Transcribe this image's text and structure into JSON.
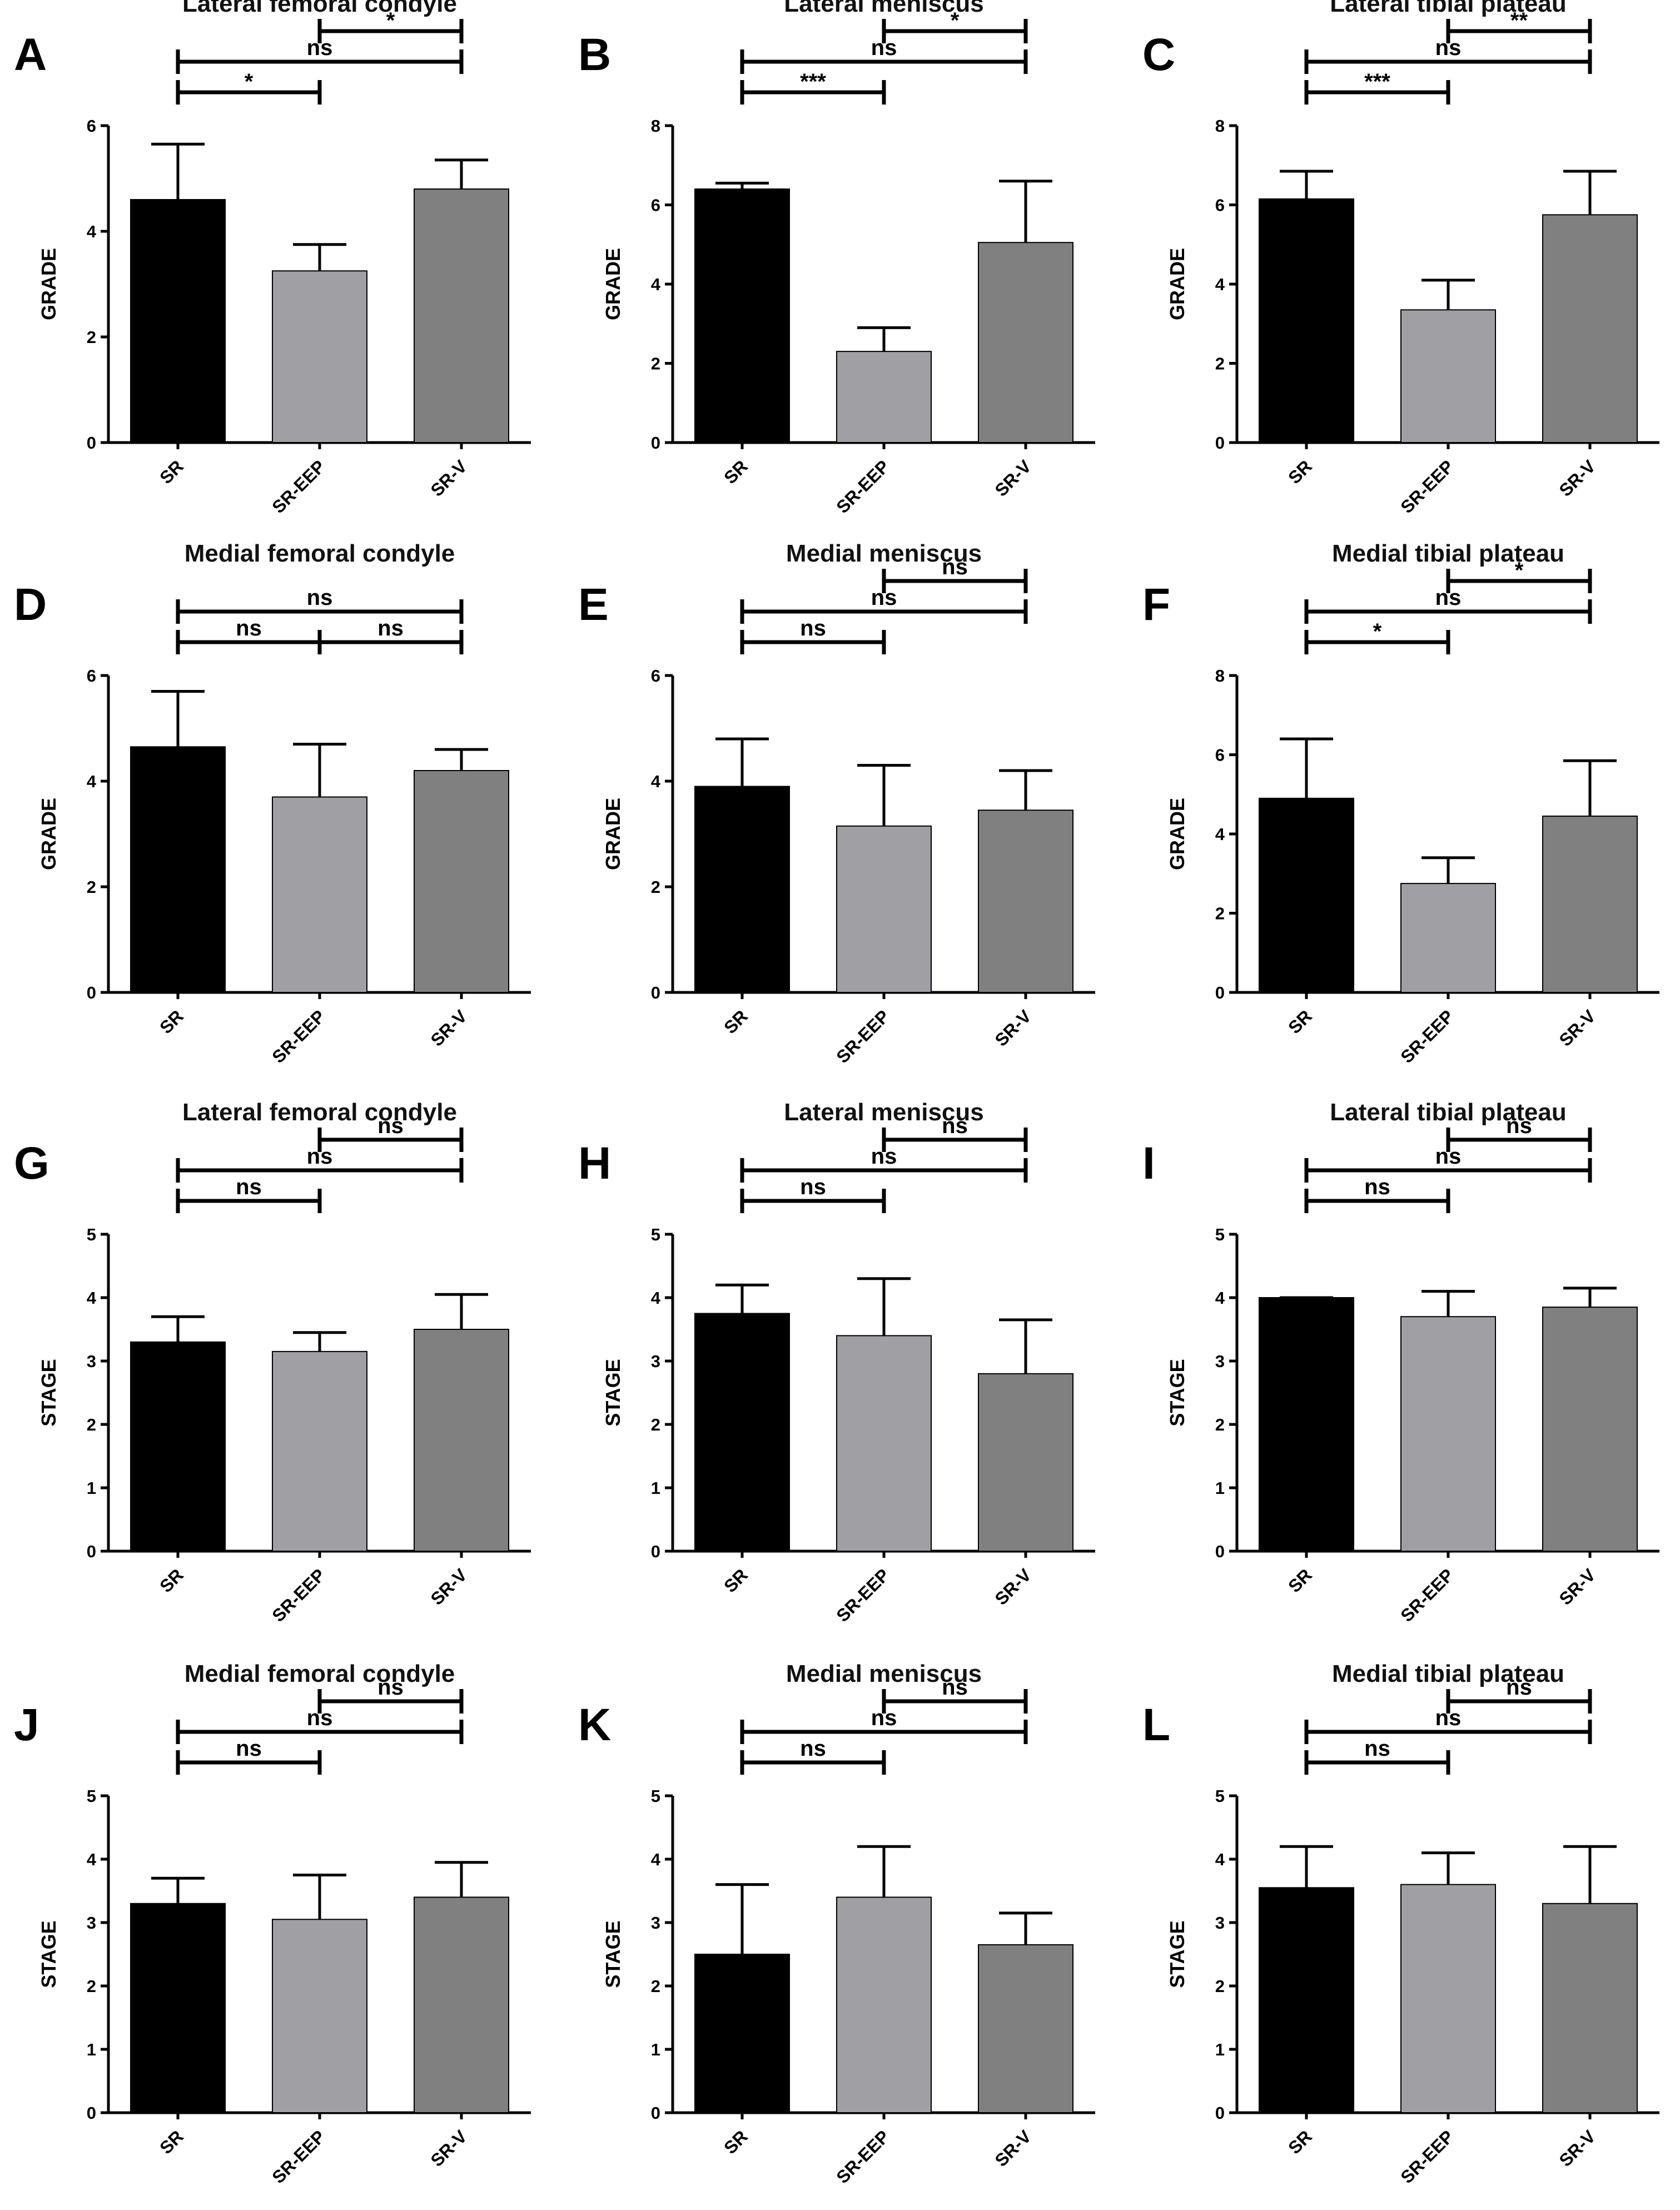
{
  "figure": {
    "colors": {
      "SR": "#000000",
      "SR-EEP": "#a0a0a4",
      "SR-V": "#808080"
    }
  },
  "chart_data": [
    {
      "id": "A",
      "type": "bar",
      "title": "Lateral femoral condyle",
      "ylabel": "GRADE",
      "categories": [
        "SR",
        "SR-EEP",
        "SR-V"
      ],
      "values": [
        4.6,
        3.25,
        4.8
      ],
      "errors": [
        1.05,
        0.5,
        0.55
      ],
      "ylim": [
        0,
        6
      ],
      "yticks": [
        "0",
        "2",
        "4",
        "6"
      ],
      "comparisons": [
        {
          "from": 0,
          "to": 1,
          "label": "*",
          "level": 0
        },
        {
          "from": 0,
          "to": 2,
          "label": "ns",
          "level": 1
        },
        {
          "from": 1,
          "to": 2,
          "label": "*",
          "level": 2
        }
      ]
    },
    {
      "id": "B",
      "type": "bar",
      "title": "Lateral meniscus",
      "ylabel": "GRADE",
      "categories": [
        "SR",
        "SR-EEP",
        "SR-V"
      ],
      "values": [
        6.4,
        2.3,
        5.05
      ],
      "errors": [
        0.15,
        0.6,
        1.55
      ],
      "ylim": [
        0,
        8
      ],
      "yticks": [
        "0",
        "2",
        "4",
        "6",
        "8"
      ],
      "comparisons": [
        {
          "from": 0,
          "to": 1,
          "label": "***",
          "level": 0
        },
        {
          "from": 0,
          "to": 2,
          "label": "ns",
          "level": 1
        },
        {
          "from": 1,
          "to": 2,
          "label": "*",
          "level": 2
        }
      ]
    },
    {
      "id": "C",
      "type": "bar",
      "title": "Lateral tibial plateau",
      "ylabel": "GRADE",
      "categories": [
        "SR",
        "SR-EEP",
        "SR-V"
      ],
      "values": [
        6.15,
        3.35,
        5.75
      ],
      "errors": [
        0.7,
        0.75,
        1.1
      ],
      "ylim": [
        0,
        8
      ],
      "yticks": [
        "0",
        "2",
        "4",
        "6",
        "8"
      ],
      "comparisons": [
        {
          "from": 0,
          "to": 1,
          "label": "***",
          "level": 0
        },
        {
          "from": 0,
          "to": 2,
          "label": "ns",
          "level": 1
        },
        {
          "from": 1,
          "to": 2,
          "label": "**",
          "level": 2
        }
      ]
    },
    {
      "id": "D",
      "type": "bar",
      "title": "Medial femoral condyle",
      "ylabel": "GRADE",
      "categories": [
        "SR",
        "SR-EEP",
        "SR-V"
      ],
      "values": [
        4.65,
        3.7,
        4.2
      ],
      "errors": [
        1.05,
        1.0,
        0.4
      ],
      "ylim": [
        0,
        6
      ],
      "yticks": [
        "0",
        "2",
        "4",
        "6"
      ],
      "comparisons": [
        {
          "from": 0,
          "to": 1,
          "label": "ns",
          "level": 0
        },
        {
          "from": 1,
          "to": 2,
          "label": "ns",
          "level": 0
        },
        {
          "from": 0,
          "to": 2,
          "label": "ns",
          "level": 1
        }
      ]
    },
    {
      "id": "E",
      "type": "bar",
      "title": "Medial meniscus",
      "ylabel": "GRADE",
      "categories": [
        "SR",
        "SR-EEP",
        "SR-V"
      ],
      "values": [
        3.9,
        3.15,
        3.45
      ],
      "errors": [
        0.9,
        1.15,
        0.75
      ],
      "ylim": [
        0,
        6
      ],
      "yticks": [
        "0",
        "2",
        "4",
        "6"
      ],
      "comparisons": [
        {
          "from": 0,
          "to": 1,
          "label": "ns",
          "level": 0
        },
        {
          "from": 0,
          "to": 2,
          "label": "ns",
          "level": 1
        },
        {
          "from": 1,
          "to": 2,
          "label": "ns",
          "level": 2
        }
      ]
    },
    {
      "id": "F",
      "type": "bar",
      "title": "Medial tibial plateau",
      "ylabel": "GRADE",
      "categories": [
        "SR",
        "SR-EEP",
        "SR-V"
      ],
      "values": [
        4.9,
        2.75,
        4.45
      ],
      "errors": [
        1.5,
        0.65,
        1.4
      ],
      "ylim": [
        0,
        8
      ],
      "yticks": [
        "0",
        "2",
        "4",
        "6",
        "8"
      ],
      "comparisons": [
        {
          "from": 0,
          "to": 1,
          "label": "*",
          "level": 0
        },
        {
          "from": 0,
          "to": 2,
          "label": "ns",
          "level": 1
        },
        {
          "from": 1,
          "to": 2,
          "label": "*",
          "level": 2
        }
      ]
    },
    {
      "id": "G",
      "type": "bar",
      "title": "Lateral femoral condyle",
      "ylabel": "STAGE",
      "categories": [
        "SR",
        "SR-EEP",
        "SR-V"
      ],
      "values": [
        3.3,
        3.15,
        3.5
      ],
      "errors": [
        0.4,
        0.3,
        0.55
      ],
      "ylim": [
        0,
        5
      ],
      "yticks": [
        "0",
        "1",
        "2",
        "3",
        "4",
        "5"
      ],
      "comparisons": [
        {
          "from": 0,
          "to": 1,
          "label": "ns",
          "level": 0
        },
        {
          "from": 0,
          "to": 2,
          "label": "ns",
          "level": 1
        },
        {
          "from": 1,
          "to": 2,
          "label": "ns",
          "level": 2
        }
      ]
    },
    {
      "id": "H",
      "type": "bar",
      "title": "Lateral meniscus",
      "ylabel": "STAGE",
      "categories": [
        "SR",
        "SR-EEP",
        "SR-V"
      ],
      "values": [
        3.75,
        3.4,
        2.8
      ],
      "errors": [
        0.45,
        0.9,
        0.85
      ],
      "ylim": [
        0,
        5
      ],
      "yticks": [
        "0",
        "1",
        "2",
        "3",
        "4",
        "5"
      ],
      "comparisons": [
        {
          "from": 0,
          "to": 1,
          "label": "ns",
          "level": 0
        },
        {
          "from": 0,
          "to": 2,
          "label": "ns",
          "level": 1
        },
        {
          "from": 1,
          "to": 2,
          "label": "ns",
          "level": 2
        }
      ]
    },
    {
      "id": "I",
      "type": "bar",
      "title": "Lateral tibial plateau",
      "ylabel": "STAGE",
      "categories": [
        "SR",
        "SR-EEP",
        "SR-V"
      ],
      "values": [
        4.0,
        3.7,
        3.85
      ],
      "errors": [
        0.0,
        0.4,
        0.3
      ],
      "ylim": [
        0,
        5
      ],
      "yticks": [
        "0",
        "1",
        "2",
        "3",
        "4",
        "5"
      ],
      "comparisons": [
        {
          "from": 0,
          "to": 1,
          "label": "ns",
          "level": 0
        },
        {
          "from": 0,
          "to": 2,
          "label": "ns",
          "level": 1
        },
        {
          "from": 1,
          "to": 2,
          "label": "ns",
          "level": 2
        }
      ]
    },
    {
      "id": "J",
      "type": "bar",
      "title": "Medial femoral condyle",
      "ylabel": "STAGE",
      "categories": [
        "SR",
        "SR-EEP",
        "SR-V"
      ],
      "values": [
        3.3,
        3.05,
        3.4
      ],
      "errors": [
        0.4,
        0.7,
        0.55
      ],
      "ylim": [
        0,
        5
      ],
      "yticks": [
        "0",
        "1",
        "2",
        "3",
        "4",
        "5"
      ],
      "comparisons": [
        {
          "from": 0,
          "to": 1,
          "label": "ns",
          "level": 0
        },
        {
          "from": 0,
          "to": 2,
          "label": "ns",
          "level": 1
        },
        {
          "from": 1,
          "to": 2,
          "label": "ns",
          "level": 2
        }
      ]
    },
    {
      "id": "K",
      "type": "bar",
      "title": "Medial meniscus",
      "ylabel": "STAGE",
      "categories": [
        "SR",
        "SR-EEP",
        "SR-V"
      ],
      "values": [
        2.5,
        3.4,
        2.65
      ],
      "errors": [
        1.1,
        0.8,
        0.5
      ],
      "ylim": [
        0,
        5
      ],
      "yticks": [
        "0",
        "1",
        "2",
        "3",
        "4",
        "5"
      ],
      "comparisons": [
        {
          "from": 0,
          "to": 1,
          "label": "ns",
          "level": 0
        },
        {
          "from": 0,
          "to": 2,
          "label": "ns",
          "level": 1
        },
        {
          "from": 1,
          "to": 2,
          "label": "ns",
          "level": 2
        }
      ]
    },
    {
      "id": "L",
      "type": "bar",
      "title": "Medial tibial plateau",
      "ylabel": "STAGE",
      "categories": [
        "SR",
        "SR-EEP",
        "SR-V"
      ],
      "values": [
        3.55,
        3.6,
        3.3
      ],
      "errors": [
        0.65,
        0.5,
        0.9
      ],
      "ylim": [
        0,
        5
      ],
      "yticks": [
        "0",
        "1",
        "2",
        "3",
        "4",
        "5"
      ],
      "comparisons": [
        {
          "from": 0,
          "to": 1,
          "label": "ns",
          "level": 0
        },
        {
          "from": 0,
          "to": 2,
          "label": "ns",
          "level": 1
        },
        {
          "from": 1,
          "to": 2,
          "label": "ns",
          "level": 2
        }
      ]
    }
  ]
}
